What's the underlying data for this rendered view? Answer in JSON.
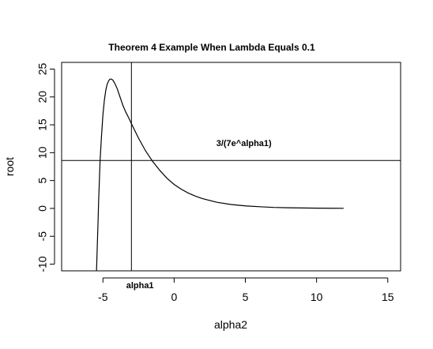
{
  "chart_data": {
    "type": "line",
    "title": "Theorem 4 Example When Lambda Equals 0.1",
    "xlabel": "alpha2",
    "ylabel": "root",
    "xlim": [
      -7.9,
      15.9
    ],
    "ylim": [
      -11.2,
      26.2
    ],
    "x_ticks": [
      -5,
      0,
      5,
      10,
      15
    ],
    "y_ticks": [
      -10,
      -5,
      0,
      5,
      10,
      15,
      20,
      25
    ],
    "x_tick_labels": [
      "-5",
      "0",
      "5",
      "10",
      "15"
    ],
    "y_tick_labels": [
      "-10",
      "-5",
      "0",
      "5",
      "10",
      "15",
      "20",
      "25"
    ],
    "grid": false,
    "series": [
      {
        "color": "#000000",
        "points": [
          [
            -5.45,
            -11.2
          ],
          [
            -5.4,
            -7.0
          ],
          [
            -5.35,
            -3.0
          ],
          [
            -5.3,
            1.5
          ],
          [
            -5.25,
            5.0
          ],
          [
            -5.2,
            8.6
          ],
          [
            -5.1,
            13.0
          ],
          [
            -5.0,
            16.8
          ],
          [
            -4.9,
            19.4
          ],
          [
            -4.8,
            21.2
          ],
          [
            -4.7,
            22.3
          ],
          [
            -4.6,
            22.9
          ],
          [
            -4.5,
            23.2
          ],
          [
            -4.4,
            23.2
          ],
          [
            -4.3,
            23.0
          ],
          [
            -4.2,
            22.6
          ],
          [
            -4.0,
            21.5
          ],
          [
            -3.8,
            20.0
          ],
          [
            -3.6,
            18.5
          ],
          [
            -3.4,
            17.3
          ],
          [
            -3.2,
            16.3
          ],
          [
            -3.0,
            15.2
          ],
          [
            -2.5,
            12.6
          ],
          [
            -2.0,
            10.3
          ],
          [
            -1.5,
            8.4
          ],
          [
            -1.0,
            6.8
          ],
          [
            -0.5,
            5.4
          ],
          [
            0.0,
            4.3
          ],
          [
            0.5,
            3.45
          ],
          [
            1.0,
            2.75
          ],
          [
            1.5,
            2.2
          ],
          [
            2.0,
            1.75
          ],
          [
            3.0,
            1.1
          ],
          [
            4.0,
            0.7
          ],
          [
            5.0,
            0.45
          ],
          [
            6.0,
            0.3
          ],
          [
            7.0,
            0.18
          ],
          [
            8.0,
            0.12
          ],
          [
            9.0,
            0.08
          ],
          [
            10.0,
            0.05
          ],
          [
            11.0,
            0.03
          ],
          [
            11.9,
            0.02
          ]
        ]
      }
    ],
    "reference_lines": [
      {
        "orientation": "vertical",
        "x": -3.0,
        "label": "alpha1",
        "label_x": -2.4,
        "label_y": -14.3
      },
      {
        "orientation": "horizontal",
        "y": 8.6,
        "label": "3/(7e^alpha1)",
        "label_x": 4.9,
        "label_y": 11.2
      }
    ]
  }
}
